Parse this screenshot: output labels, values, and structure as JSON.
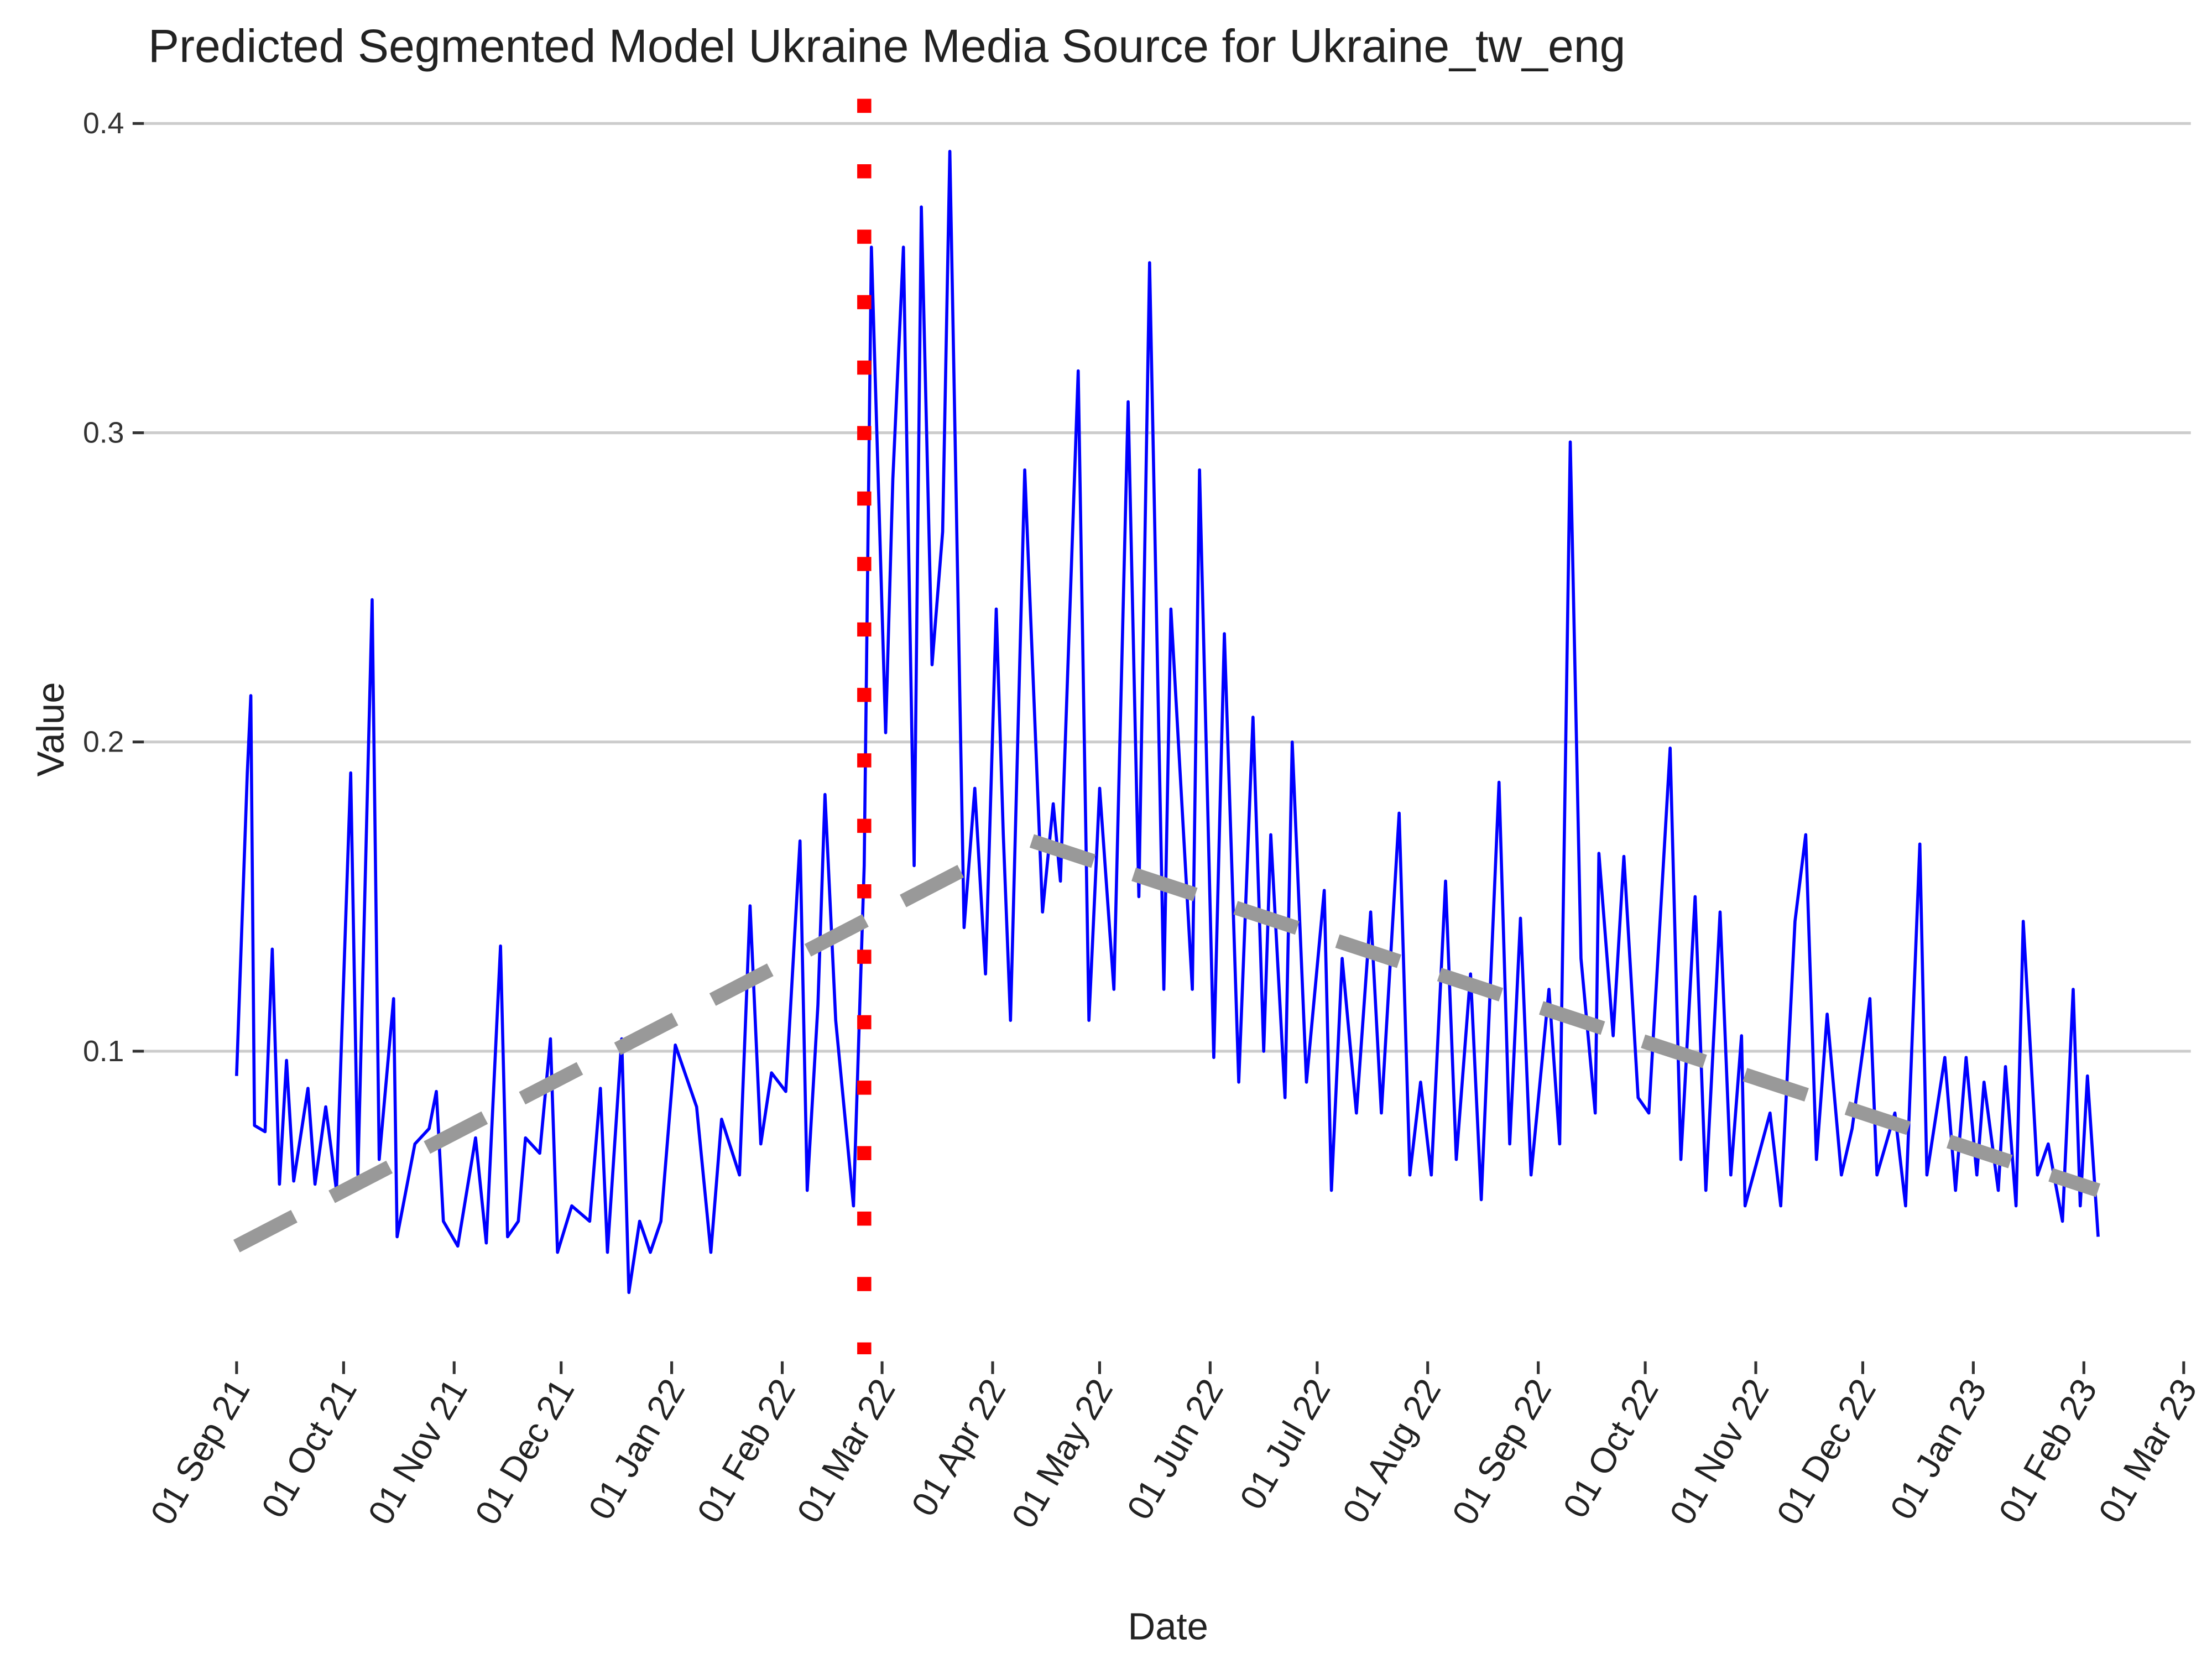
{
  "chart_data": {
    "type": "line",
    "title": "Predicted Segmented Model Ukraine Media Source for Ukraine_tw_eng",
    "xlabel": "Date",
    "ylabel": "Value",
    "color": "#0000ff",
    "x": [
      "2021-09-01",
      "2021-09-04",
      "2021-09-05",
      "2021-09-06",
      "2021-09-09",
      "2021-09-11",
      "2021-09-13",
      "2021-09-15",
      "2021-09-17",
      "2021-09-21",
      "2021-09-23",
      "2021-09-26",
      "2021-09-29",
      "2021-10-03",
      "2021-10-05",
      "2021-10-09",
      "2021-10-11",
      "2021-10-15",
      "2021-10-16",
      "2021-10-21",
      "2021-10-25",
      "2021-10-27",
      "2021-10-29",
      "2021-11-02",
      "2021-11-07",
      "2021-11-10",
      "2021-11-14",
      "2021-11-16",
      "2021-11-19",
      "2021-11-21",
      "2021-11-25",
      "2021-11-28",
      "2021-11-30",
      "2021-12-04",
      "2021-12-09",
      "2021-12-12",
      "2021-12-14",
      "2021-12-18",
      "2021-12-20",
      "2021-12-23",
      "2021-12-26",
      "2021-12-29",
      "2022-01-02",
      "2022-01-08",
      "2022-01-12",
      "2022-01-15",
      "2022-01-20",
      "2022-01-23",
      "2022-01-26",
      "2022-01-29",
      "2022-02-02",
      "2022-02-06",
      "2022-02-08",
      "2022-02-11",
      "2022-02-13",
      "2022-02-16",
      "2022-02-21",
      "2022-02-24",
      "2022-02-26",
      "2022-03-02",
      "2022-03-04",
      "2022-03-07",
      "2022-03-10",
      "2022-03-12",
      "2022-03-15",
      "2022-03-18",
      "2022-03-20",
      "2022-03-24",
      "2022-03-27",
      "2022-03-30",
      "2022-04-02",
      "2022-04-04",
      "2022-04-06",
      "2022-04-10",
      "2022-04-15",
      "2022-04-18",
      "2022-04-20",
      "2022-04-25",
      "2022-04-28",
      "2022-05-01",
      "2022-05-05",
      "2022-05-09",
      "2022-05-12",
      "2022-05-15",
      "2022-05-19",
      "2022-05-21",
      "2022-05-27",
      "2022-05-29",
      "2022-06-02",
      "2022-06-05",
      "2022-06-09",
      "2022-06-13",
      "2022-06-16",
      "2022-06-18",
      "2022-06-22",
      "2022-06-24",
      "2022-06-28",
      "2022-07-03",
      "2022-07-05",
      "2022-07-08",
      "2022-07-12",
      "2022-07-16",
      "2022-07-19",
      "2022-07-24",
      "2022-07-27",
      "2022-07-30",
      "2022-08-02",
      "2022-08-06",
      "2022-08-09",
      "2022-08-13",
      "2022-08-16",
      "2022-08-21",
      "2022-08-24",
      "2022-08-27",
      "2022-08-30",
      "2022-09-04",
      "2022-09-07",
      "2022-09-10",
      "2022-09-13",
      "2022-09-17",
      "2022-09-18",
      "2022-09-22",
      "2022-09-25",
      "2022-09-29",
      "2022-10-02",
      "2022-10-08",
      "2022-10-11",
      "2022-10-15",
      "2022-10-18",
      "2022-10-22",
      "2022-10-25",
      "2022-10-28",
      "2022-10-29",
      "2022-11-05",
      "2022-11-08",
      "2022-11-12",
      "2022-11-15",
      "2022-11-18",
      "2022-11-21",
      "2022-11-25",
      "2022-11-28",
      "2022-12-03",
      "2022-12-05",
      "2022-12-10",
      "2022-12-13",
      "2022-12-17",
      "2022-12-19",
      "2022-12-24",
      "2022-12-27",
      "2022-12-30",
      "2023-01-02",
      "2023-01-04",
      "2023-01-08",
      "2023-01-10",
      "2023-01-13",
      "2023-01-15",
      "2023-01-19",
      "2023-01-22",
      "2023-01-26",
      "2023-01-29",
      "2023-01-31",
      "2023-02-02",
      "2023-02-05"
    ],
    "values": [
      0.092,
      0.19,
      0.215,
      0.076,
      0.074,
      0.133,
      0.057,
      0.097,
      0.058,
      0.088,
      0.057,
      0.082,
      0.055,
      0.19,
      0.06,
      0.246,
      0.065,
      0.117,
      0.04,
      0.07,
      0.075,
      0.087,
      0.045,
      0.037,
      0.072,
      0.038,
      0.134,
      0.04,
      0.045,
      0.072,
      0.067,
      0.104,
      0.035,
      0.05,
      0.045,
      0.088,
      0.035,
      0.104,
      0.022,
      0.045,
      0.035,
      0.045,
      0.102,
      0.082,
      0.035,
      0.078,
      0.06,
      0.147,
      0.07,
      0.093,
      0.087,
      0.168,
      0.055,
      0.115,
      0.183,
      0.11,
      0.05,
      0.16,
      0.36,
      0.203,
      0.285,
      0.36,
      0.16,
      0.373,
      0.225,
      0.268,
      0.391,
      0.14,
      0.185,
      0.125,
      0.243,
      0.17,
      0.11,
      0.288,
      0.145,
      0.18,
      0.155,
      0.32,
      0.11,
      0.185,
      0.12,
      0.31,
      0.15,
      0.355,
      0.12,
      0.243,
      0.12,
      0.288,
      0.098,
      0.235,
      0.09,
      0.208,
      0.1,
      0.17,
      0.085,
      0.2,
      0.09,
      0.152,
      0.055,
      0.13,
      0.08,
      0.145,
      0.08,
      0.177,
      0.06,
      0.09,
      0.06,
      0.155,
      0.065,
      0.125,
      0.052,
      0.187,
      0.07,
      0.143,
      0.06,
      0.12,
      0.07,
      0.297,
      0.13,
      0.08,
      0.164,
      0.105,
      0.163,
      0.085,
      0.08,
      0.198,
      0.065,
      0.15,
      0.055,
      0.145,
      0.06,
      0.105,
      0.05,
      0.08,
      0.05,
      0.142,
      0.17,
      0.065,
      0.112,
      0.06,
      0.075,
      0.117,
      0.06,
      0.08,
      0.05,
      0.167,
      0.06,
      0.098,
      0.055,
      0.098,
      0.06,
      0.09,
      0.055,
      0.095,
      0.05,
      0.142,
      0.06,
      0.07,
      0.045,
      0.12,
      0.05,
      0.092,
      0.04
    ],
    "trend": {
      "color": "#999999",
      "x": [
        "2021-09-01",
        "2022-03-31",
        "2022-04-06",
        "2022-04-12",
        "2023-02-05"
      ],
      "values": [
        0.037,
        0.163,
        null,
        0.168,
        0.055
      ]
    },
    "vline": "2022-02-24",
    "vline_color": "#ff0000",
    "xlim": [
      "2021-08-06",
      "2023-03-03"
    ],
    "xticks": [
      {
        "value": "2021-09-01",
        "label": "01 Sep 21"
      },
      {
        "value": "2021-10-01",
        "label": "01 Oct 21"
      },
      {
        "value": "2021-11-01",
        "label": "01 Nov 21"
      },
      {
        "value": "2021-12-01",
        "label": "01 Dec 21"
      },
      {
        "value": "2022-01-01",
        "label": "01 Jan 22"
      },
      {
        "value": "2022-02-01",
        "label": "01 Feb 22"
      },
      {
        "value": "2022-03-01",
        "label": "01 Mar 22"
      },
      {
        "value": "2022-04-01",
        "label": "01 Apr 22"
      },
      {
        "value": "2022-05-01",
        "label": "01 May 22"
      },
      {
        "value": "2022-06-01",
        "label": "01 Jun 22"
      },
      {
        "value": "2022-07-01",
        "label": "01 Jul 22"
      },
      {
        "value": "2022-08-01",
        "label": "01 Aug 22"
      },
      {
        "value": "2022-09-01",
        "label": "01 Sep 22"
      },
      {
        "value": "2022-10-01",
        "label": "01 Oct 22"
      },
      {
        "value": "2022-11-01",
        "label": "01 Nov 22"
      },
      {
        "value": "2022-12-01",
        "label": "01 Dec 22"
      },
      {
        "value": "2023-01-01",
        "label": "01 Jan 23"
      },
      {
        "value": "2023-02-01",
        "label": "01 Feb 23"
      },
      {
        "value": "2023-03-01",
        "label": "01 Mar 23"
      }
    ],
    "ylim": [
      0.002,
      0.408
    ],
    "yticks": [
      0.1,
      0.2,
      0.3,
      0.4
    ],
    "grid": true
  }
}
